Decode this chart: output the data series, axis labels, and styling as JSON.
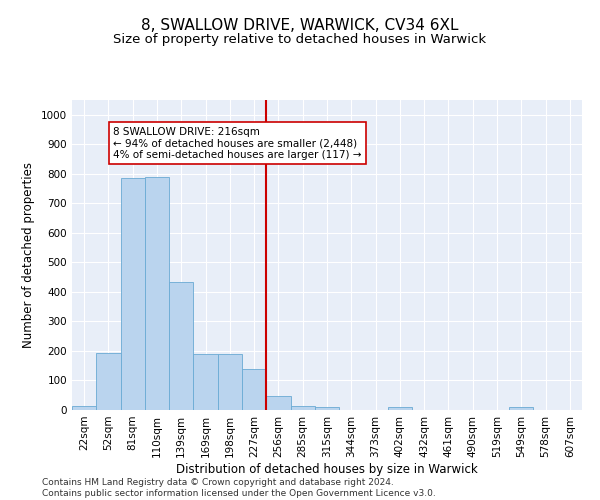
{
  "title1": "8, SWALLOW DRIVE, WARWICK, CV34 6XL",
  "title2": "Size of property relative to detached houses in Warwick",
  "xlabel": "Distribution of detached houses by size in Warwick",
  "ylabel": "Number of detached properties",
  "bar_labels": [
    "22sqm",
    "52sqm",
    "81sqm",
    "110sqm",
    "139sqm",
    "169sqm",
    "198sqm",
    "227sqm",
    "256sqm",
    "285sqm",
    "315sqm",
    "344sqm",
    "373sqm",
    "402sqm",
    "432sqm",
    "461sqm",
    "490sqm",
    "519sqm",
    "549sqm",
    "578sqm",
    "607sqm"
  ],
  "bar_values": [
    15,
    193,
    785,
    790,
    435,
    190,
    190,
    140,
    48,
    15,
    10,
    0,
    0,
    10,
    0,
    0,
    0,
    0,
    10,
    0,
    0
  ],
  "bar_color": "#bad4ee",
  "bar_edge_color": "#6aaad4",
  "vline_color": "#cc0000",
  "vline_x": 7.5,
  "annotation_text": "8 SWALLOW DRIVE: 216sqm\n← 94% of detached houses are smaller (2,448)\n4% of semi-detached houses are larger (117) →",
  "annotation_box_color": "#ffffff",
  "annotation_border_color": "#cc0000",
  "ylim": [
    0,
    1050
  ],
  "yticks": [
    0,
    100,
    200,
    300,
    400,
    500,
    600,
    700,
    800,
    900,
    1000
  ],
  "background_color": "#e8eef8",
  "grid_color": "#ffffff",
  "footer_line1": "Contains HM Land Registry data © Crown copyright and database right 2024.",
  "footer_line2": "Contains public sector information licensed under the Open Government Licence v3.0.",
  "title1_fontsize": 11,
  "title2_fontsize": 9.5,
  "axis_label_fontsize": 8.5,
  "tick_fontsize": 7.5,
  "annotation_fontsize": 7.5,
  "footer_fontsize": 6.5
}
